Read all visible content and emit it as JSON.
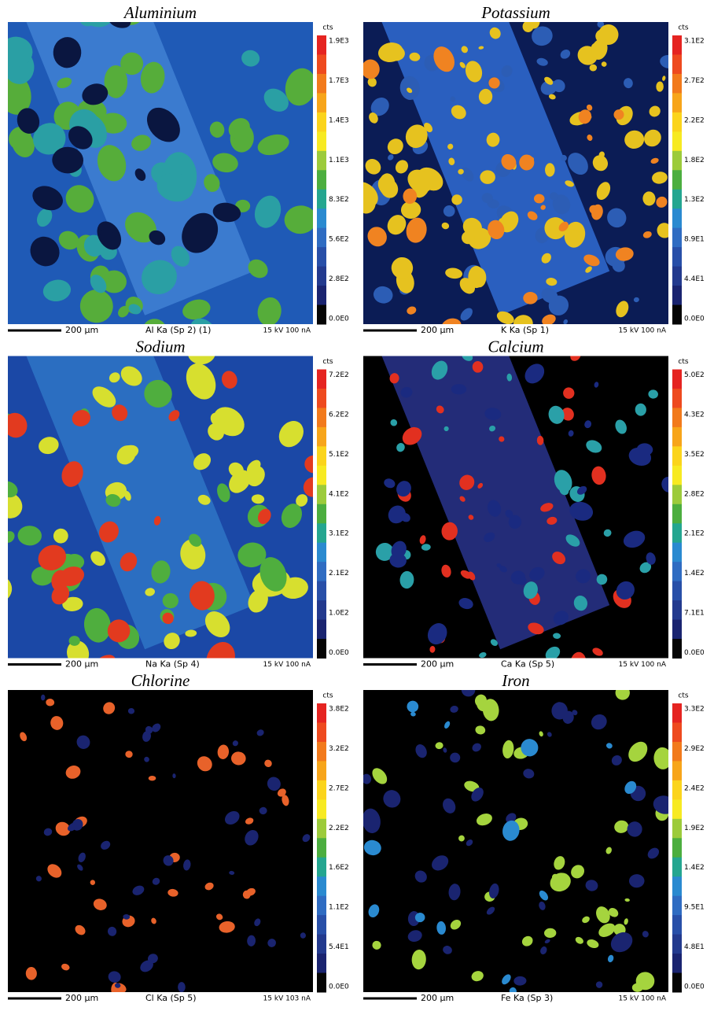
{
  "panels": [
    {
      "title": "Aluminium",
      "unit": "cts",
      "colorbar": [
        "1.9E3",
        "1.7E3",
        "1.4E3",
        "1.1E3",
        "8.3E2",
        "5.6E2",
        "2.8E2",
        "0.0E0"
      ],
      "scale": "200 µm",
      "label": "Al Ka (Sp 2) (1)",
      "conditions": "15 kV 100 nA"
    },
    {
      "title": "Potassium",
      "unit": "cts",
      "colorbar": [
        "3.1E2",
        "2.7E2",
        "2.2E2",
        "1.8E2",
        "1.3E2",
        "8.9E1",
        "4.4E1",
        "0.0E0"
      ],
      "scale": "200 µm",
      "label": "K  Ka (Sp 1)",
      "conditions": "15 kV 100 nA"
    },
    {
      "title": "Sodium",
      "unit": "cts",
      "colorbar": [
        "7.2E2",
        "6.2E2",
        "5.1E2",
        "4.1E2",
        "3.1E2",
        "2.1E2",
        "1.0E2",
        "0.0E0"
      ],
      "scale": "200 µm",
      "label": "Na Ka (Sp 4)",
      "conditions": "15 kV 100 nA"
    },
    {
      "title": "Calcium",
      "unit": "cts",
      "colorbar": [
        "5.0E2",
        "4.3E2",
        "3.5E2",
        "2.8E2",
        "2.1E2",
        "1.4E2",
        "7.1E1",
        "0.0E0"
      ],
      "scale": "200 µm",
      "label": "Ca Ka (Sp 5)",
      "conditions": "15 kV 100 nA"
    },
    {
      "title": "Chlorine",
      "unit": "cts",
      "colorbar": [
        "3.8E2",
        "3.2E2",
        "2.7E2",
        "2.2E2",
        "1.6E2",
        "1.1E2",
        "5.4E1",
        "0.0E0"
      ],
      "scale": "200 µm",
      "label": "Cl Ka (Sp 5)",
      "conditions": "15 kV 103 nA"
    },
    {
      "title": "Iron",
      "unit": "cts",
      "colorbar": [
        "3.3E2",
        "2.9E2",
        "2.4E2",
        "1.9E2",
        "1.4E2",
        "9.5E1",
        "4.8E1",
        "0.0E0"
      ],
      "scale": "200 µm",
      "label": "Fe Ka (Sp 3)",
      "conditions": "15 kV 100 nA"
    }
  ]
}
